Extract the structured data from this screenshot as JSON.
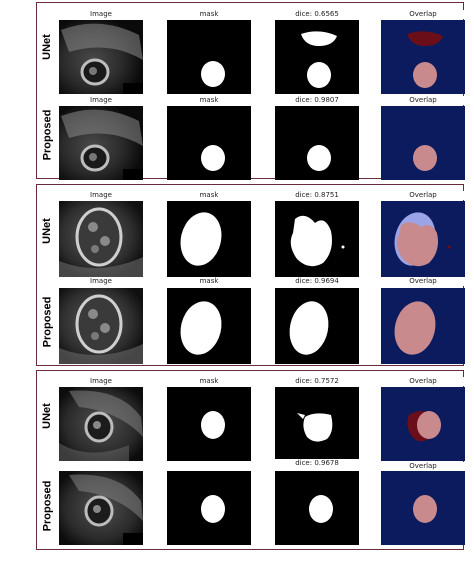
{
  "labels": {
    "image": "Image",
    "mask": "mask",
    "overlap": "Overlap"
  },
  "methods": {
    "unet": "UNet",
    "proposed": "Proposed"
  },
  "groups": [
    {
      "unet_dice": "dice: 0.6565",
      "proposed_dice": "dice: 0.9807"
    },
    {
      "unet_dice": "dice: 0.8751",
      "proposed_dice": "dice: 0.9694"
    },
    {
      "unet_dice": "dice: 0.7572",
      "proposed_dice": "dice: 0.9678"
    }
  ],
  "colors": {
    "border": "#6b2a3c",
    "mask_bg": "#000000",
    "mask_fg": "#ffffff",
    "overlap_bg": "#0c1a5e",
    "overlap_true_positive": "#c98a8e",
    "overlap_false_positive": "#6a0f1a",
    "overlap_false_negative": "#9aa4e6"
  }
}
